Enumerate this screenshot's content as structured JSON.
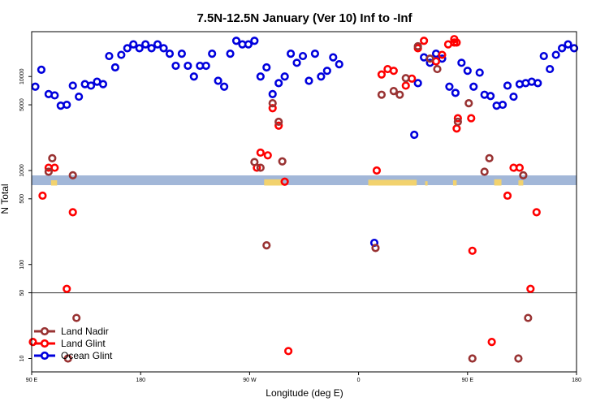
{
  "chart_data": {
    "type": "scatter",
    "title": "7.5N-12.5N January (Ver 10)   Inf to -Inf",
    "xlabel": "Longitude (deg E)",
    "ylabel": "N Total",
    "x_ticks": [
      {
        "value": 0,
        "label": "90 E"
      },
      {
        "value": 90,
        "label": "180"
      },
      {
        "value": 180,
        "label": "90 W"
      },
      {
        "value": 270,
        "label": "0"
      },
      {
        "value": 360,
        "label": "90 E"
      },
      {
        "value": 450,
        "label": "180"
      }
    ],
    "y_ticks": [
      10,
      50,
      100,
      500,
      1000,
      5000,
      10000
    ],
    "reference_line": 50,
    "legend": [
      {
        "name": "Land Nadir",
        "color": "#993333"
      },
      {
        "name": "Land Glint",
        "color": "#ff0000"
      },
      {
        "name": "Ocean Glint",
        "color": "#0000dd"
      }
    ],
    "series": [
      {
        "name": "Ocean Glint",
        "color": "#0000dd",
        "points": [
          [
            3,
            7800
          ],
          [
            8,
            11800
          ],
          [
            14,
            6500
          ],
          [
            19,
            6300
          ],
          [
            24,
            4900
          ],
          [
            29,
            5000
          ],
          [
            34,
            8000
          ],
          [
            39,
            6100
          ],
          [
            44,
            8300
          ],
          [
            49,
            8000
          ],
          [
            54,
            8800
          ],
          [
            59,
            8300
          ],
          [
            64,
            16500
          ],
          [
            69,
            12500
          ],
          [
            74,
            17000
          ],
          [
            79,
            20000
          ],
          [
            84,
            22000
          ],
          [
            89,
            20000
          ],
          [
            94,
            22000
          ],
          [
            99,
            20000
          ],
          [
            104,
            22000
          ],
          [
            109,
            20000
          ],
          [
            114,
            17500
          ],
          [
            119,
            13000
          ],
          [
            124,
            17500
          ],
          [
            129,
            13000
          ],
          [
            134,
            10000
          ],
          [
            139,
            13000
          ],
          [
            144,
            13000
          ],
          [
            149,
            17500
          ],
          [
            154,
            9000
          ],
          [
            159,
            7800
          ],
          [
            164,
            17500
          ],
          [
            169,
            24000
          ],
          [
            174,
            22000
          ],
          [
            179,
            22000
          ],
          [
            184,
            24000
          ],
          [
            189,
            10000
          ],
          [
            194,
            12500
          ],
          [
            199,
            6500
          ],
          [
            204,
            8500
          ],
          [
            209,
            10000
          ],
          [
            214,
            17500
          ],
          [
            219,
            14000
          ],
          [
            224,
            16500
          ],
          [
            229,
            9000
          ],
          [
            234,
            17500
          ],
          [
            239,
            10000
          ],
          [
            244,
            11500
          ],
          [
            249,
            16000
          ],
          [
            254,
            13500
          ],
          [
            316,
            2400
          ],
          [
            319,
            8500
          ],
          [
            324,
            16000
          ],
          [
            329,
            14000
          ],
          [
            334,
            17500
          ],
          [
            339,
            15500
          ],
          [
            345,
            7800
          ],
          [
            350,
            6700
          ],
          [
            355,
            14000
          ],
          [
            360,
            11500
          ],
          [
            365,
            7800
          ],
          [
            370,
            11000
          ],
          [
            374,
            6400
          ],
          [
            379,
            6200
          ],
          [
            384,
            4900
          ],
          [
            389,
            5000
          ],
          [
            393,
            8000
          ],
          [
            398,
            6100
          ],
          [
            403,
            8300
          ],
          [
            408,
            8500
          ],
          [
            413,
            8800
          ],
          [
            418,
            8500
          ],
          [
            423,
            16500
          ],
          [
            428,
            12000
          ],
          [
            433,
            17000
          ],
          [
            438,
            20000
          ],
          [
            443,
            22000
          ],
          [
            448,
            20000
          ],
          [
            283,
            170
          ]
        ]
      },
      {
        "name": "Land Glint",
        "color": "#ff0000",
        "points": [
          [
            1,
            15
          ],
          [
            9,
            540
          ],
          [
            14,
            1070
          ],
          [
            19,
            1070
          ],
          [
            29,
            55
          ],
          [
            34,
            360
          ],
          [
            186,
            1070
          ],
          [
            189,
            1550
          ],
          [
            195,
            1450
          ],
          [
            199,
            4600
          ],
          [
            204,
            3000
          ],
          [
            209,
            760
          ],
          [
            212,
            12
          ],
          [
            285,
            1000
          ],
          [
            289,
            10500
          ],
          [
            294,
            12000
          ],
          [
            299,
            11500
          ],
          [
            309,
            8000
          ],
          [
            314,
            9500
          ],
          [
            319,
            20000
          ],
          [
            324,
            24000
          ],
          [
            334,
            14500
          ],
          [
            339,
            17000
          ],
          [
            344,
            22000
          ],
          [
            349,
            23000
          ],
          [
            351,
            2800
          ],
          [
            349,
            25000
          ],
          [
            351,
            23000
          ],
          [
            352,
            3600
          ],
          [
            363,
            3600
          ],
          [
            364,
            140
          ],
          [
            380,
            15
          ],
          [
            393,
            540
          ],
          [
            398,
            1070
          ],
          [
            403,
            1070
          ],
          [
            412,
            55
          ],
          [
            417,
            360
          ]
        ]
      },
      {
        "name": "Land Nadir",
        "color": "#993333",
        "points": [
          [
            14,
            970
          ],
          [
            17,
            1350
          ],
          [
            30,
            10
          ],
          [
            34,
            890
          ],
          [
            37,
            27
          ],
          [
            184,
            1230
          ],
          [
            189,
            1070
          ],
          [
            194,
            160
          ],
          [
            199,
            5200
          ],
          [
            204,
            3300
          ],
          [
            207,
            1250
          ],
          [
            284,
            150
          ],
          [
            289,
            6400
          ],
          [
            299,
            7000
          ],
          [
            304,
            6400
          ],
          [
            309,
            9600
          ],
          [
            319,
            21000
          ],
          [
            329,
            15500
          ],
          [
            335,
            12000
          ],
          [
            352,
            3300
          ],
          [
            361,
            5200
          ],
          [
            364,
            10
          ],
          [
            374,
            970
          ],
          [
            378,
            1350
          ],
          [
            402,
            10
          ],
          [
            406,
            890
          ],
          [
            410,
            27
          ]
        ]
      }
    ]
  }
}
